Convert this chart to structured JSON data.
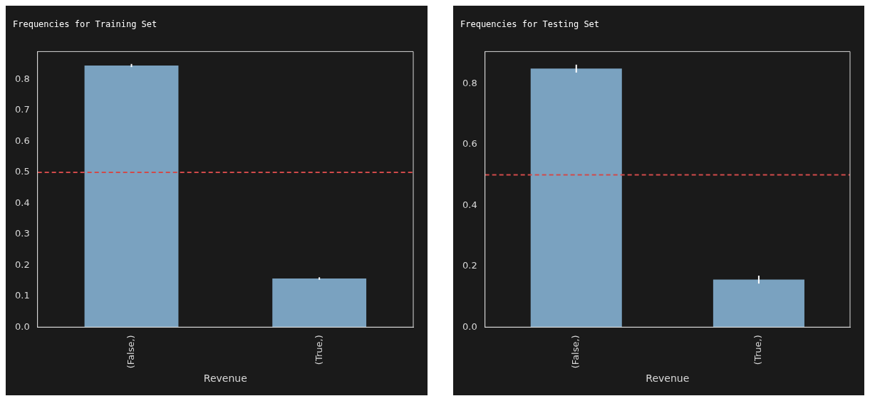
{
  "chart_data": [
    {
      "type": "bar",
      "title": "Frequencies for Training Set",
      "xlabel": "Revenue",
      "categories": [
        "(False,)",
        "(True,)"
      ],
      "values": [
        0.845,
        0.157
      ],
      "errors": [
        0.005,
        0.004
      ],
      "color": "#7aa2c0",
      "ylim": [
        0,
        0.89
      ],
      "yticks": [
        {
          "value": 0,
          "label": "0.0"
        },
        0.1,
        0.2,
        0.3,
        0.4,
        0.5,
        0.6,
        0.7,
        0.8
      ],
      "ref_lines": [
        {
          "axis": "y",
          "value": 0.5,
          "color": "#d04a4a",
          "line_style": "dashed"
        }
      ],
      "grid": false,
      "legend": false
    },
    {
      "type": "bar",
      "title": "Frequencies for Testing Set",
      "xlabel": "Revenue",
      "categories": [
        "(False,)",
        "(True,)"
      ],
      "values": [
        0.849,
        0.156
      ],
      "errors": [
        0.013,
        0.013
      ],
      "color": "#7aa2c0",
      "ylim": [
        0,
        0.905
      ],
      "yticks": [
        {
          "value": 0,
          "label": "0.0"
        },
        0.2,
        0.4,
        0.6,
        0.8
      ],
      "ref_lines": [
        {
          "axis": "y",
          "value": 0.5,
          "color": "#d04a4a",
          "line_style": "dashed"
        }
      ],
      "grid": false,
      "legend": false
    }
  ]
}
